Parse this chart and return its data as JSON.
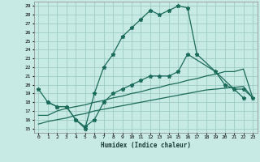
{
  "xlabel": "Humidex (Indice chaleur)",
  "background_color": "#c8eae4",
  "grid_color": "#a0ccc6",
  "line_color": "#1a6b5a",
  "xlim": [
    -0.5,
    23.5
  ],
  "ylim": [
    14.5,
    29.5
  ],
  "xticks": [
    0,
    1,
    2,
    3,
    4,
    5,
    6,
    7,
    8,
    9,
    10,
    11,
    12,
    13,
    14,
    15,
    16,
    17,
    18,
    19,
    20,
    21,
    22,
    23
  ],
  "yticks": [
    15,
    16,
    17,
    18,
    19,
    20,
    21,
    22,
    23,
    24,
    25,
    26,
    27,
    28,
    29
  ],
  "line1_x": [
    0,
    1,
    2,
    3,
    4,
    5,
    6,
    7,
    8,
    9,
    10,
    11,
    12,
    13,
    14,
    15,
    16,
    17,
    22
  ],
  "line1_y": [
    19.5,
    18,
    17.5,
    17.5,
    16,
    15,
    19,
    22,
    23.5,
    25.5,
    26.5,
    27.5,
    28.5,
    28,
    28.5,
    29,
    28.8,
    23.5,
    18.5
  ],
  "line2_x": [
    1,
    2,
    3,
    4,
    5,
    6,
    7,
    8,
    9,
    10,
    11,
    12,
    13,
    14,
    15,
    16,
    19,
    20,
    21,
    22,
    23
  ],
  "line2_y": [
    18,
    17.5,
    17.5,
    16,
    15.2,
    16,
    18,
    19,
    19.5,
    20,
    20.5,
    21,
    21,
    21,
    21.5,
    23.5,
    21.5,
    20,
    19.5,
    19.5,
    18.5
  ],
  "line3_x": [
    0,
    1,
    2,
    3,
    4,
    5,
    6,
    7,
    8,
    9,
    10,
    11,
    12,
    13,
    14,
    15,
    16,
    17,
    18,
    19,
    20,
    21,
    22,
    23
  ],
  "line3_y": [
    16.5,
    16.5,
    17,
    17.3,
    17.5,
    17.7,
    18,
    18.2,
    18.5,
    18.7,
    19,
    19.2,
    19.5,
    19.7,
    20,
    20.2,
    20.5,
    20.7,
    21,
    21.2,
    21.5,
    21.5,
    21.8,
    18.5
  ],
  "line4_x": [
    0,
    1,
    2,
    3,
    4,
    5,
    6,
    7,
    8,
    9,
    10,
    11,
    12,
    13,
    14,
    15,
    16,
    17,
    18,
    19,
    20,
    21,
    22,
    23
  ],
  "line4_y": [
    15.5,
    15.8,
    16.0,
    16.2,
    16.5,
    16.7,
    17.0,
    17.2,
    17.4,
    17.6,
    17.8,
    18.0,
    18.2,
    18.4,
    18.6,
    18.8,
    19.0,
    19.2,
    19.4,
    19.5,
    19.6,
    19.7,
    19.8,
    18.5
  ],
  "marker": "*",
  "markersize": 3.5,
  "linewidth": 0.9
}
